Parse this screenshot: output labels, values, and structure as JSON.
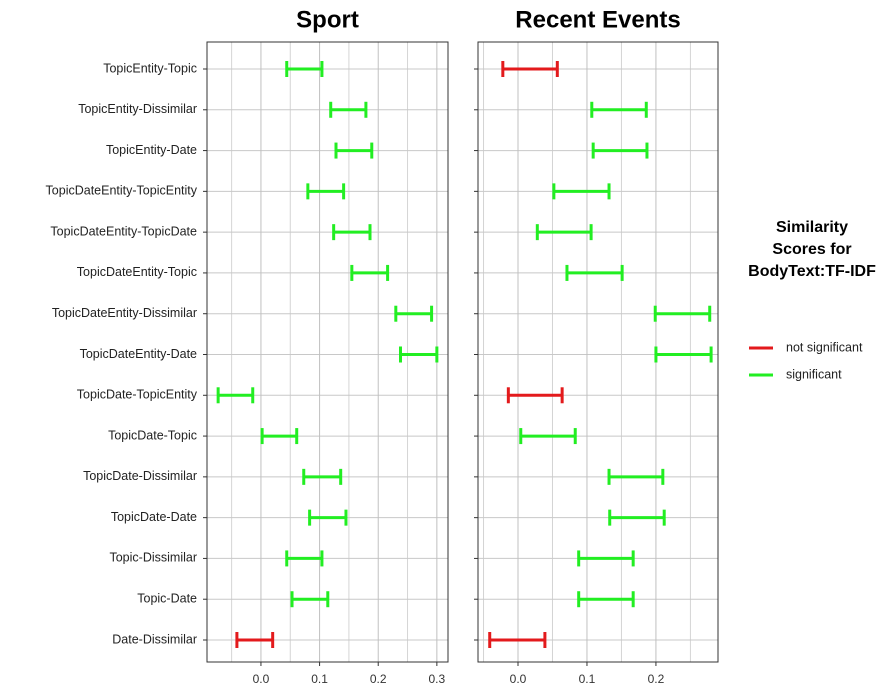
{
  "chart_data": {
    "type": "errorbar",
    "categories": [
      "TopicEntity-Topic",
      "TopicEntity-Dissimilar",
      "TopicEntity-Date",
      "TopicDateEntity-TopicEntity",
      "TopicDateEntity-TopicDate",
      "TopicDateEntity-Topic",
      "TopicDateEntity-Dissimilar",
      "TopicDateEntity-Date",
      "TopicDate-TopicEntity",
      "TopicDate-Topic",
      "TopicDate-Dissimilar",
      "TopicDate-Date",
      "Topic-Dissimilar",
      "Topic-Date",
      "Date-Dissimilar"
    ],
    "legend": {
      "title": [
        "Similarity",
        "Scores for",
        "BodyText:TF-IDF"
      ],
      "entries": [
        {
          "name": "not significant",
          "color": "#e31a1c"
        },
        {
          "name": "significant",
          "color": "#22ee22"
        }
      ]
    },
    "grid": true,
    "panels": [
      {
        "title": "Sport",
        "xlim": [
          -0.092,
          0.319
        ],
        "xticks": [
          {
            "value": 0,
            "label": "0.0"
          },
          0.1,
          0.2,
          0.3
        ],
        "series": [
          {
            "low": [
              null,
              null,
              null,
              null,
              null,
              null,
              null,
              null,
              null,
              null,
              null,
              null,
              null,
              null,
              -0.041
            ],
            "high": [
              null,
              null,
              null,
              null,
              null,
              null,
              null,
              null,
              null,
              null,
              null,
              null,
              null,
              null,
              0.02
            ]
          },
          {
            "low": [
              0.044,
              0.119,
              0.128,
              0.08,
              0.124,
              0.155,
              0.23,
              0.238,
              -0.073,
              0.002,
              0.073,
              0.083,
              0.044,
              0.053,
              null
            ],
            "high": [
              0.104,
              0.179,
              0.189,
              0.141,
              0.186,
              0.216,
              0.291,
              0.3,
              -0.014,
              0.061,
              0.136,
              0.145,
              0.104,
              0.114,
              null
            ]
          }
        ]
      },
      {
        "title": "Recent Events",
        "xlim": [
          -0.058,
          0.29
        ],
        "xticks": [
          {
            "value": 0,
            "label": "0.0"
          },
          0.1,
          0.2
        ],
        "series": [
          {
            "low": [
              -0.022,
              null,
              null,
              null,
              null,
              null,
              null,
              null,
              -0.014,
              null,
              null,
              null,
              null,
              null,
              -0.041
            ],
            "high": [
              0.057,
              null,
              null,
              null,
              null,
              null,
              null,
              null,
              0.064,
              null,
              null,
              null,
              null,
              null,
              0.039
            ]
          },
          {
            "low": [
              null,
              0.107,
              0.109,
              0.052,
              0.028,
              0.071,
              0.199,
              0.2,
              null,
              0.004,
              0.132,
              0.133,
              0.088,
              0.088,
              null
            ],
            "high": [
              null,
              0.186,
              0.187,
              0.132,
              0.106,
              0.151,
              0.278,
              0.28,
              null,
              0.083,
              0.21,
              0.212,
              0.167,
              0.167,
              null
            ]
          }
        ]
      }
    ]
  }
}
